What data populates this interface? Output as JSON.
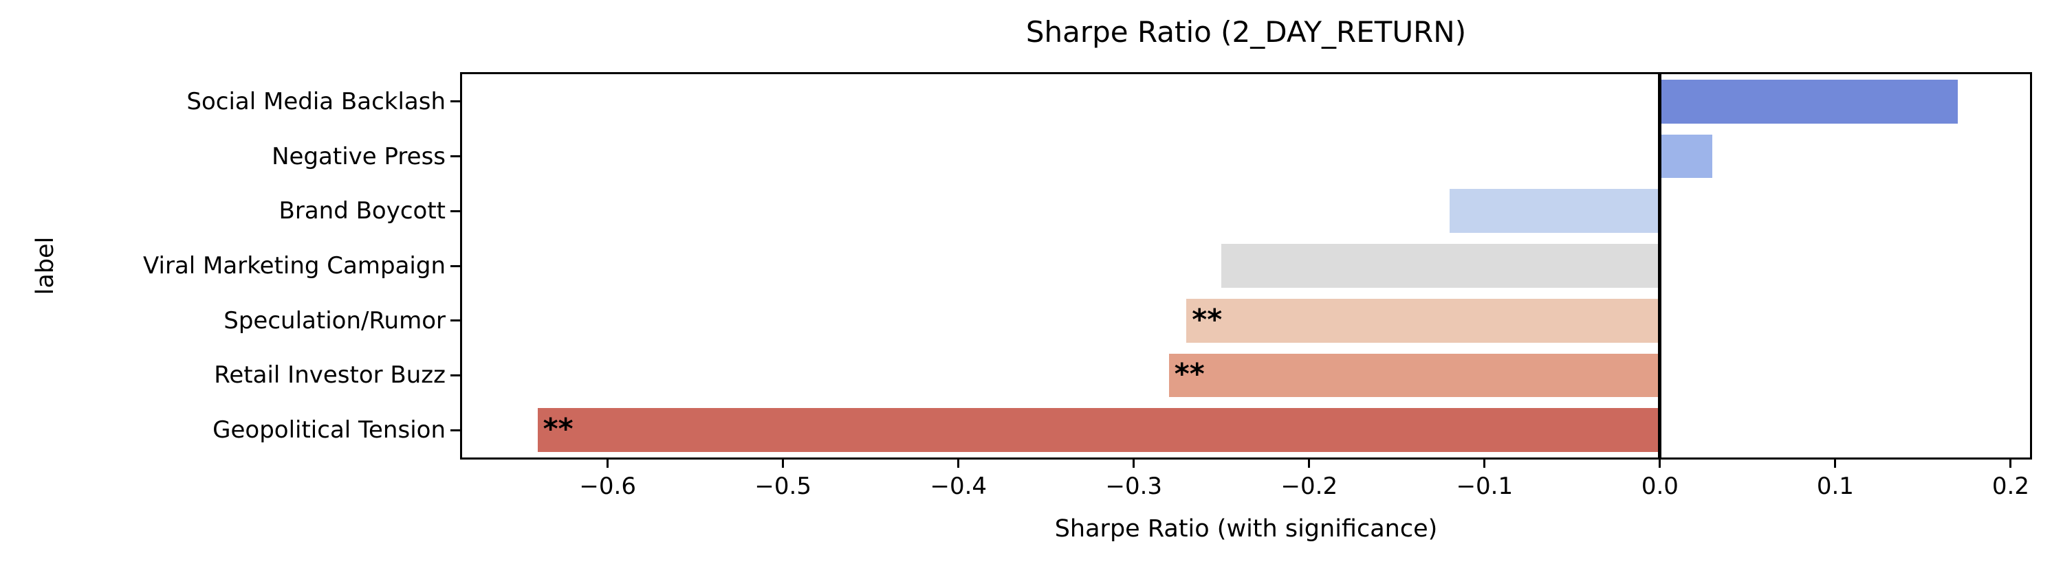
{
  "chart_data": {
    "type": "bar",
    "orientation": "horizontal",
    "title": "Sharpe Ratio (2_DAY_RETURN)",
    "xlabel": "Sharpe Ratio (with significance)",
    "ylabel": "label",
    "categories": [
      "Social Media Backlash",
      "Negative Press",
      "Brand Boycott",
      "Viral Marketing Campaign",
      "Speculation/Rumor",
      "Retail Investor Buzz",
      "Geopolitical Tension"
    ],
    "bars": [
      {
        "label": "Social Media Backlash",
        "value": 0.17,
        "color": "#7289d9",
        "significance": ""
      },
      {
        "label": "Negative Press",
        "value": 0.03,
        "color": "#9db4ea",
        "significance": ""
      },
      {
        "label": "Brand Boycott",
        "value": -0.12,
        "color": "#c3d3ef",
        "significance": ""
      },
      {
        "label": "Viral Marketing Campaign",
        "value": -0.25,
        "color": "#dcdcdc",
        "significance": ""
      },
      {
        "label": "Speculation/Rumor",
        "value": -0.27,
        "color": "#ecc8b3",
        "significance": "**"
      },
      {
        "label": "Retail Investor Buzz",
        "value": -0.28,
        "color": "#e29f88",
        "significance": "**"
      },
      {
        "label": "Geopolitical Tension",
        "value": -0.64,
        "color": "#cc695d",
        "significance": "**"
      }
    ],
    "x_ticks": [
      {
        "value": -0.6,
        "label": "−0.6"
      },
      {
        "value": -0.5,
        "label": "−0.5"
      },
      {
        "value": -0.4,
        "label": "−0.4"
      },
      {
        "value": -0.3,
        "label": "−0.3"
      },
      {
        "value": -0.2,
        "label": "−0.2"
      },
      {
        "value": -0.1,
        "label": "−0.1"
      },
      {
        "value": 0.0,
        "label": "0.0"
      },
      {
        "value": 0.1,
        "label": "0.1"
      },
      {
        "value": 0.2,
        "label": "0.2"
      }
    ],
    "xlim": [
      -0.683,
      0.211
    ],
    "zero_line": 0,
    "bar_width_fraction": 0.8,
    "grid": false,
    "legend": "none",
    "axis_color": "#000000",
    "background": "#ffffff"
  }
}
